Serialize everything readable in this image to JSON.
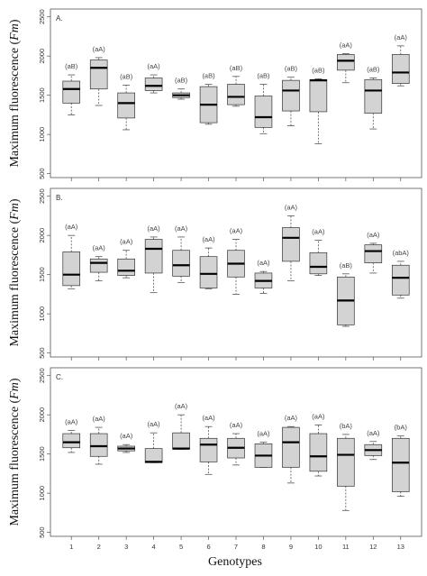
{
  "figure": {
    "xlabel": "Genotypes",
    "ylabel_prefix": "Maximum fluorescence (",
    "ylabel_symbol": "Fm",
    "ylabel_suffix": ")"
  },
  "colors": {
    "box_fill": "#d3d3d3",
    "box_stroke": "#333333",
    "median": "#000000",
    "whisker": "#555555",
    "frame": "#555555"
  },
  "chart_data": [
    {
      "type": "box",
      "panel": "A.",
      "ylim": [
        450,
        2600
      ],
      "yticks": [
        500,
        1000,
        1500,
        2000,
        2500
      ],
      "categories": [
        "1",
        "2",
        "3",
        "4",
        "5",
        "6",
        "7",
        "8",
        "9",
        "10",
        "11",
        "12",
        "13"
      ],
      "boxes": [
        {
          "min": 1250,
          "q1": 1400,
          "median": 1580,
          "q3": 1680,
          "max": 1760,
          "label": "(aB)"
        },
        {
          "min": 1370,
          "q1": 1580,
          "median": 1850,
          "q3": 1950,
          "max": 1980,
          "label": "(aA)"
        },
        {
          "min": 1060,
          "q1": 1210,
          "median": 1400,
          "q3": 1530,
          "max": 1630,
          "label": "(aB)"
        },
        {
          "min": 1530,
          "q1": 1560,
          "median": 1620,
          "q3": 1720,
          "max": 1760,
          "label": "(aA)"
        },
        {
          "min": 1450,
          "q1": 1470,
          "median": 1500,
          "q3": 1530,
          "max": 1580,
          "label": "(aB)"
        },
        {
          "min": 1130,
          "q1": 1150,
          "median": 1380,
          "q3": 1610,
          "max": 1640,
          "label": "(aB)"
        },
        {
          "min": 1360,
          "q1": 1380,
          "median": 1480,
          "q3": 1640,
          "max": 1740,
          "label": "(aB)"
        },
        {
          "min": 1010,
          "q1": 1090,
          "median": 1220,
          "q3": 1490,
          "max": 1640,
          "label": "(aB)"
        },
        {
          "min": 1110,
          "q1": 1300,
          "median": 1560,
          "q3": 1690,
          "max": 1730,
          "label": "(aB)"
        },
        {
          "min": 880,
          "q1": 1290,
          "median": 1690,
          "q3": 1700,
          "max": 1710,
          "label": "(aB)"
        },
        {
          "min": 1660,
          "q1": 1820,
          "median": 1940,
          "q3": 2020,
          "max": 2030,
          "label": "(aA)"
        },
        {
          "min": 1070,
          "q1": 1270,
          "median": 1560,
          "q3": 1700,
          "max": 1720,
          "label": "(aB)"
        },
        {
          "min": 1620,
          "q1": 1650,
          "median": 1790,
          "q3": 2020,
          "max": 2130,
          "label": "(aA)"
        }
      ]
    },
    {
      "type": "box",
      "panel": "B.",
      "ylim": [
        450,
        2600
      ],
      "yticks": [
        500,
        1000,
        1500,
        2000,
        2500
      ],
      "categories": [
        "1",
        "2",
        "3",
        "4",
        "5",
        "6",
        "7",
        "8",
        "9",
        "10",
        "11",
        "12",
        "13"
      ],
      "boxes": [
        {
          "min": 1320,
          "q1": 1360,
          "median": 1500,
          "q3": 1790,
          "max": 2000,
          "label": "(aA)"
        },
        {
          "min": 1420,
          "q1": 1530,
          "median": 1650,
          "q3": 1700,
          "max": 1730,
          "label": "(aA)"
        },
        {
          "min": 1460,
          "q1": 1490,
          "median": 1550,
          "q3": 1700,
          "max": 1810,
          "label": "(aA)"
        },
        {
          "min": 1270,
          "q1": 1520,
          "median": 1830,
          "q3": 1950,
          "max": 1980,
          "label": "(aA)"
        },
        {
          "min": 1400,
          "q1": 1480,
          "median": 1620,
          "q3": 1810,
          "max": 1980,
          "label": "(aA)"
        },
        {
          "min": 1320,
          "q1": 1330,
          "median": 1510,
          "q3": 1730,
          "max": 1840,
          "label": "(aA)"
        },
        {
          "min": 1250,
          "q1": 1470,
          "median": 1640,
          "q3": 1810,
          "max": 1950,
          "label": "(aA)"
        },
        {
          "min": 1260,
          "q1": 1330,
          "median": 1420,
          "q3": 1520,
          "max": 1540,
          "label": "(aA)"
        },
        {
          "min": 1420,
          "q1": 1670,
          "median": 1970,
          "q3": 2100,
          "max": 2250,
          "label": "(aA)"
        },
        {
          "min": 1490,
          "q1": 1510,
          "median": 1600,
          "q3": 1780,
          "max": 1940,
          "label": "(aA)"
        },
        {
          "min": 840,
          "q1": 860,
          "median": 1170,
          "q3": 1470,
          "max": 1510,
          "label": "(aB)"
        },
        {
          "min": 1520,
          "q1": 1650,
          "median": 1800,
          "q3": 1880,
          "max": 1900,
          "label": "(aA)"
        },
        {
          "min": 1200,
          "q1": 1240,
          "median": 1460,
          "q3": 1620,
          "max": 1670,
          "label": "(abA)"
        }
      ]
    },
    {
      "type": "box",
      "panel": "C.",
      "ylim": [
        450,
        2600
      ],
      "yticks": [
        500,
        1000,
        1500,
        2000,
        2500
      ],
      "categories": [
        "1",
        "2",
        "3",
        "4",
        "5",
        "6",
        "7",
        "8",
        "9",
        "10",
        "11",
        "12",
        "13"
      ],
      "boxes": [
        {
          "min": 1520,
          "q1": 1580,
          "median": 1650,
          "q3": 1760,
          "max": 1800,
          "label": "(aA)"
        },
        {
          "min": 1370,
          "q1": 1470,
          "median": 1600,
          "q3": 1760,
          "max": 1840,
          "label": "(aA)"
        },
        {
          "min": 1520,
          "q1": 1540,
          "median": 1570,
          "q3": 1600,
          "max": 1620,
          "label": "(aA)"
        },
        {
          "min": 1390,
          "q1": 1390,
          "median": 1400,
          "q3": 1570,
          "max": 1770,
          "label": "(aA)"
        },
        {
          "min": 1560,
          "q1": 1560,
          "median": 1570,
          "q3": 1770,
          "max": 2000,
          "label": "(aA)"
        },
        {
          "min": 1240,
          "q1": 1400,
          "median": 1620,
          "q3": 1700,
          "max": 1850,
          "label": "(aA)"
        },
        {
          "min": 1360,
          "q1": 1450,
          "median": 1580,
          "q3": 1700,
          "max": 1760,
          "label": "(aA)"
        },
        {
          "min": 1330,
          "q1": 1330,
          "median": 1480,
          "q3": 1630,
          "max": 1650,
          "label": "(aA)"
        },
        {
          "min": 1130,
          "q1": 1330,
          "median": 1650,
          "q3": 1840,
          "max": 1850,
          "label": "(aA)"
        },
        {
          "min": 1220,
          "q1": 1280,
          "median": 1470,
          "q3": 1760,
          "max": 1870,
          "label": "(aA)"
        },
        {
          "min": 780,
          "q1": 1090,
          "median": 1490,
          "q3": 1700,
          "max": 1750,
          "label": "(bA)"
        },
        {
          "min": 1430,
          "q1": 1480,
          "median": 1550,
          "q3": 1620,
          "max": 1660,
          "label": "(aA)"
        },
        {
          "min": 960,
          "q1": 1020,
          "median": 1390,
          "q3": 1700,
          "max": 1730,
          "label": "(bA)"
        }
      ]
    }
  ]
}
